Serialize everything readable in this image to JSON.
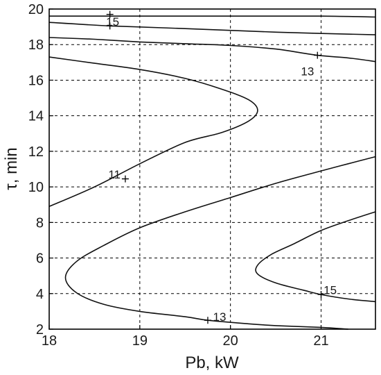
{
  "chart_data": {
    "type": "line",
    "title": "",
    "xlabel": "Pb, kW",
    "ylabel": "τ, min",
    "xlim": [
      18,
      21.6
    ],
    "ylim": [
      2,
      20
    ],
    "xticks": [
      "18",
      "19",
      "20",
      "21"
    ],
    "yticks": [
      "2",
      "4",
      "6",
      "8",
      "10",
      "12",
      "14",
      "16",
      "18",
      "20"
    ],
    "grid": true,
    "series": [
      {
        "points": [
          [
            18.0,
            19.6
          ],
          [
            19.0,
            19.6
          ],
          [
            20.0,
            19.6
          ],
          [
            21.0,
            19.6
          ],
          [
            21.6,
            19.55
          ]
        ]
      },
      {
        "points": [
          [
            18.0,
            19.25
          ],
          [
            18.67,
            19.05
          ],
          [
            19.5,
            18.9
          ],
          [
            20.5,
            18.7
          ],
          [
            21.6,
            18.55
          ]
        ]
      },
      {
        "points": [
          [
            18.0,
            18.4
          ],
          [
            18.5,
            18.3
          ],
          [
            19.0,
            18.15
          ],
          [
            19.5,
            18.05
          ],
          [
            20.0,
            17.95
          ],
          [
            20.5,
            17.75
          ],
          [
            20.96,
            17.4
          ],
          [
            21.3,
            17.25
          ],
          [
            21.6,
            17.05
          ]
        ]
      },
      {
        "points": [
          [
            18.0,
            17.3
          ],
          [
            18.5,
            16.95
          ],
          [
            19.0,
            16.6
          ],
          [
            19.5,
            16.1
          ],
          [
            19.9,
            15.5
          ],
          [
            20.2,
            14.9
          ],
          [
            20.3,
            14.3
          ],
          [
            20.2,
            13.7
          ],
          [
            19.9,
            13.05
          ],
          [
            19.5,
            12.5
          ],
          [
            19.0,
            11.3
          ],
          [
            18.5,
            10.0
          ],
          [
            18.0,
            8.9
          ]
        ]
      },
      {
        "points": [
          [
            21.6,
            11.7
          ],
          [
            21.3,
            11.3
          ],
          [
            21.0,
            10.9
          ],
          [
            20.5,
            10.2
          ],
          [
            20.0,
            9.4
          ],
          [
            19.5,
            8.6
          ],
          [
            19.0,
            7.7
          ],
          [
            18.6,
            6.7
          ],
          [
            18.3,
            5.8
          ],
          [
            18.18,
            4.9
          ],
          [
            18.3,
            4.05
          ],
          [
            18.6,
            3.4
          ],
          [
            19.0,
            3.0
          ],
          [
            19.5,
            2.7
          ],
          [
            19.75,
            2.5
          ],
          [
            20.2,
            2.3
          ],
          [
            20.5,
            2.2
          ],
          [
            21.0,
            2.1
          ],
          [
            21.3,
            2.0
          ]
        ]
      },
      {
        "points": [
          [
            21.6,
            8.6
          ],
          [
            21.3,
            8.1
          ],
          [
            21.0,
            7.55
          ],
          [
            20.7,
            6.8
          ],
          [
            20.45,
            6.2
          ],
          [
            20.3,
            5.6
          ],
          [
            20.3,
            5.1
          ],
          [
            20.5,
            4.6
          ],
          [
            20.8,
            4.2
          ],
          [
            21.0,
            3.95
          ],
          [
            21.3,
            3.7
          ],
          [
            21.6,
            3.55
          ]
        ]
      }
    ],
    "contour_labels": [
      {
        "text": "15",
        "x": 18.7,
        "y": 19.3
      },
      {
        "text": "13",
        "x": 20.85,
        "y": 16.5
      },
      {
        "text": "11",
        "x": 18.72,
        "y": 10.7
      },
      {
        "text": "15",
        "x": 21.1,
        "y": 4.2
      },
      {
        "text": "13",
        "x": 19.88,
        "y": 2.7
      }
    ],
    "markers": [
      {
        "x": 18.67,
        "y": 19.05
      },
      {
        "x": 18.67,
        "y": 19.7
      },
      {
        "x": 20.96,
        "y": 17.4
      },
      {
        "x": 18.84,
        "y": 10.45
      },
      {
        "x": 21.0,
        "y": 3.95
      },
      {
        "x": 19.75,
        "y": 2.5
      }
    ]
  }
}
